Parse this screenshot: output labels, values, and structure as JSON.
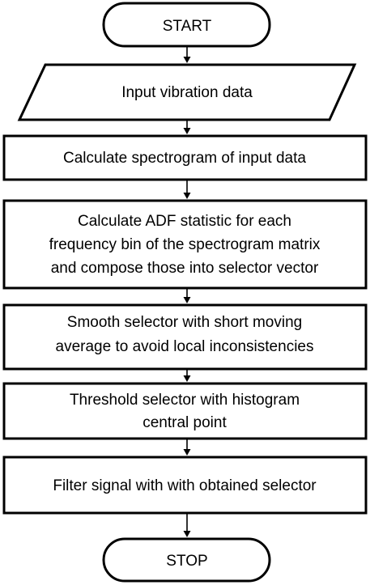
{
  "flowchart": {
    "nodes": [
      {
        "id": "start",
        "shape": "terminator",
        "lines": [
          "START"
        ]
      },
      {
        "id": "input",
        "shape": "parallelogram",
        "lines": [
          "Input vibration data"
        ]
      },
      {
        "id": "spectrogram",
        "shape": "process",
        "lines": [
          "Calculate spectrogram of input data"
        ]
      },
      {
        "id": "adf",
        "shape": "process",
        "lines": [
          "Calculate ADF statistic for each",
          "frequency bin of the spectrogram matrix",
          "and compose those into selector vector"
        ]
      },
      {
        "id": "smooth",
        "shape": "process",
        "lines": [
          "Smooth selector with short moving",
          "average to avoid local inconsistencies"
        ]
      },
      {
        "id": "threshold",
        "shape": "process",
        "lines": [
          "Threshold selector with histogram",
          "central point"
        ]
      },
      {
        "id": "filter",
        "shape": "process",
        "lines": [
          "Filter signal with with obtained selector"
        ]
      },
      {
        "id": "stop",
        "shape": "terminator",
        "lines": [
          "STOP"
        ]
      }
    ],
    "edges": [
      {
        "from": "start",
        "to": "input"
      },
      {
        "from": "input",
        "to": "spectrogram"
      },
      {
        "from": "spectrogram",
        "to": "adf"
      },
      {
        "from": "adf",
        "to": "smooth"
      },
      {
        "from": "smooth",
        "to": "threshold"
      },
      {
        "from": "threshold",
        "to": "filter"
      },
      {
        "from": "filter",
        "to": "stop"
      }
    ]
  }
}
